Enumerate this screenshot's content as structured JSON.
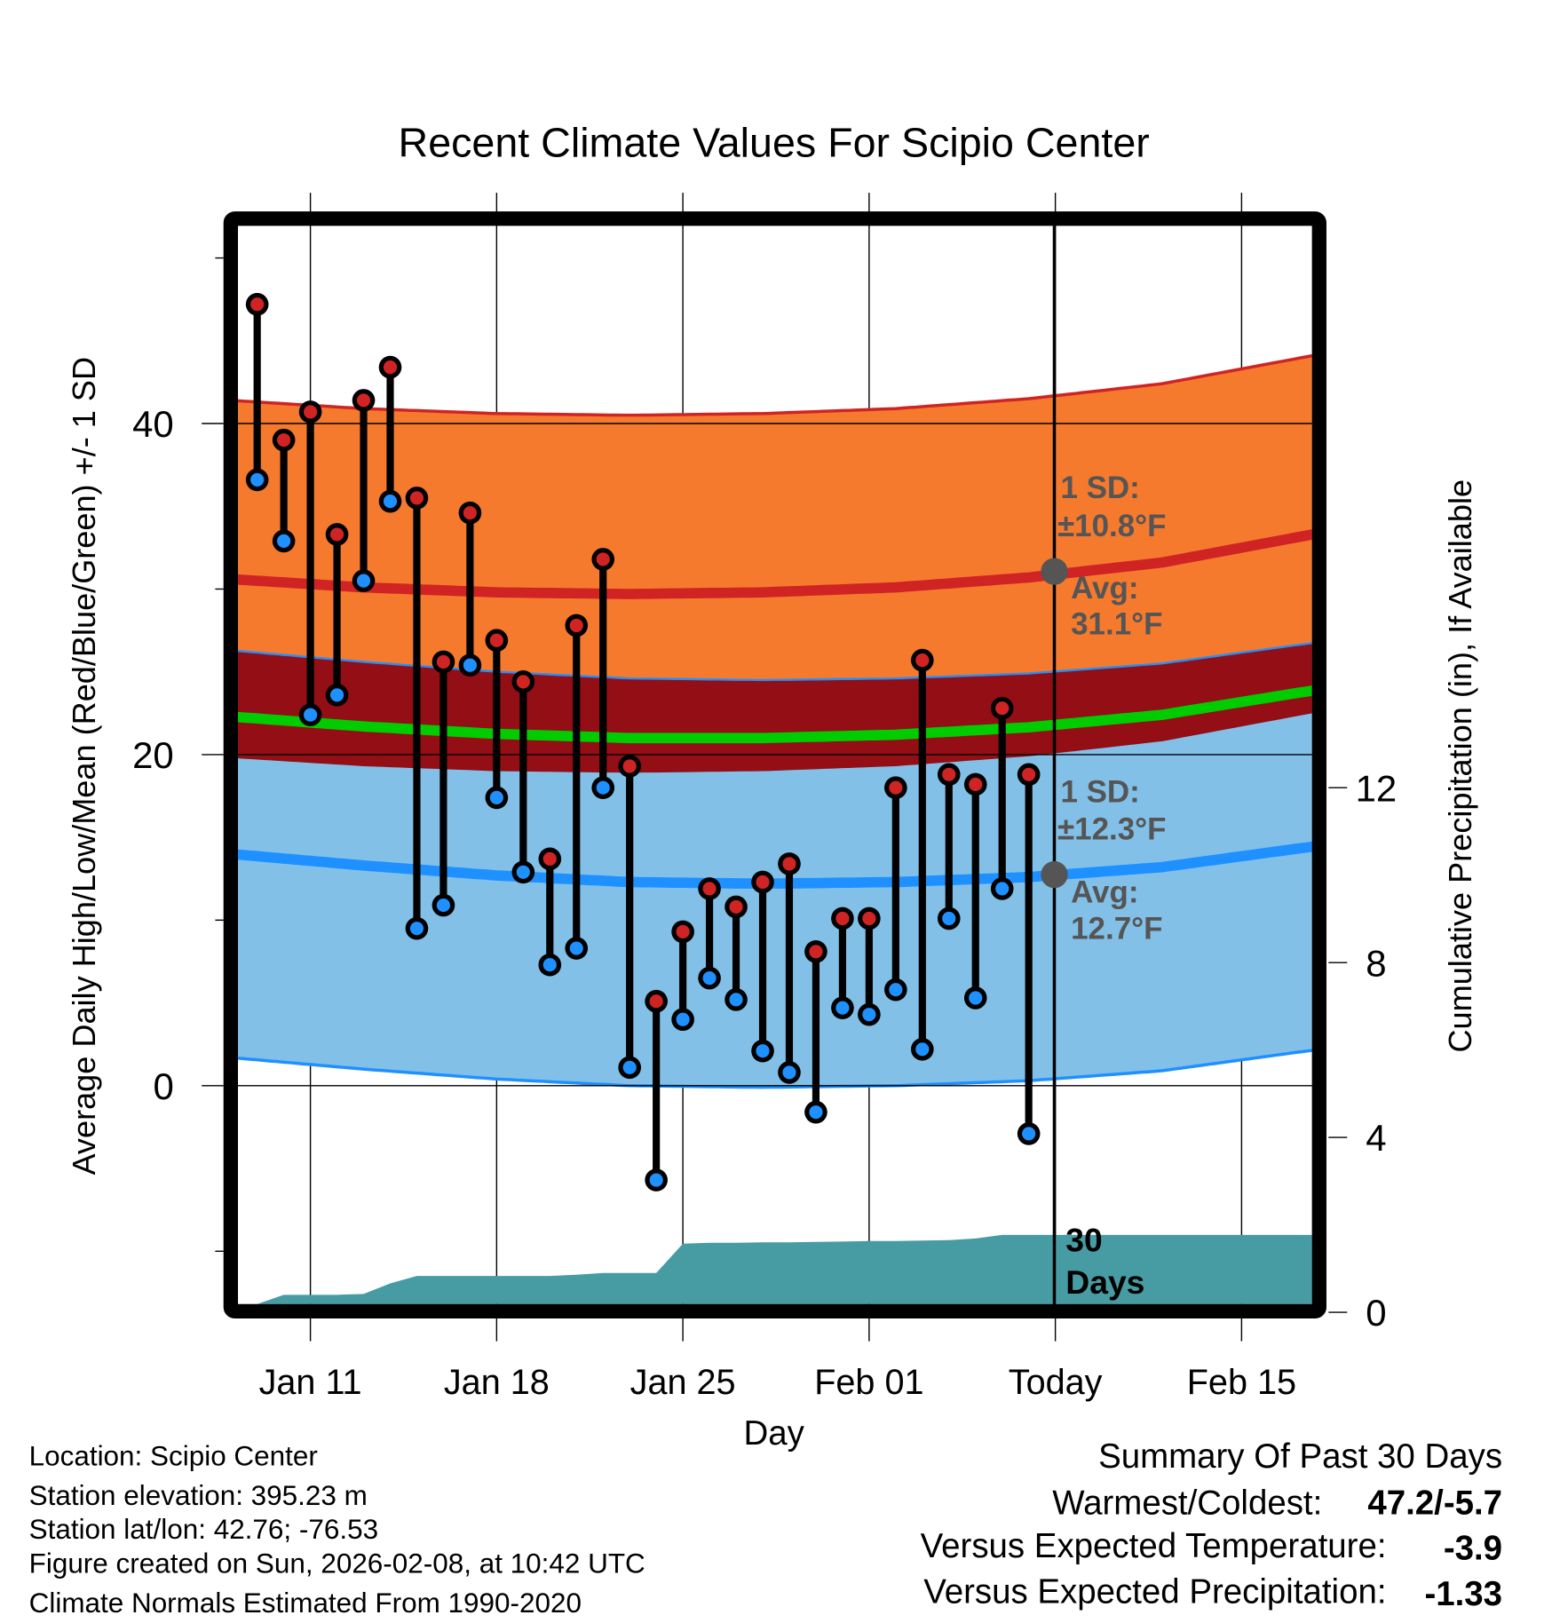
{
  "chart_data": {
    "type": "line",
    "title": "Recent Climate Values For Scipio Center",
    "xlabel": "Day",
    "ylabel": "Average Daily High/Low/Mean (Red/Blue/Green) +/- 1 SD",
    "y2label": "Cumulative Precipitation (in), If Available",
    "ylim": [
      -15,
      52
    ],
    "y2lim": [
      0,
      18
    ],
    "yticks": [
      "0",
      "20",
      "40"
    ],
    "y2ticks": [
      "0",
      "4",
      "8",
      "12"
    ],
    "xticks": [
      {
        "date": "2026-01-11",
        "label": "Jan 11"
      },
      {
        "date": "2026-01-18",
        "label": "Jan 18"
      },
      {
        "date": "2026-01-25",
        "label": "Jan 25"
      },
      {
        "date": "2026-02-01",
        "label": "Feb 01"
      },
      {
        "date": "2026-02-08",
        "label": "Today"
      },
      {
        "date": "2026-02-15",
        "label": "Feb 15"
      }
    ],
    "today": "2026-02-08",
    "grid": true,
    "series": [
      {
        "name": "Daily High",
        "color": "#d02424",
        "values": [
          47.2,
          39.0,
          40.7,
          33.3,
          41.4,
          43.4,
          35.5,
          25.6,
          34.6,
          26.9,
          24.4,
          13.7,
          27.8,
          31.8,
          19.3,
          5.1,
          9.3,
          11.9,
          10.8,
          12.3,
          13.4,
          8.1,
          10.1,
          10.1,
          18.0,
          25.7,
          18.8,
          18.2,
          22.8,
          18.8
        ]
      },
      {
        "name": "Daily Low",
        "color": "#1e90ff",
        "values": [
          36.6,
          32.9,
          22.4,
          23.6,
          30.5,
          35.3,
          9.5,
          10.9,
          25.4,
          17.4,
          12.9,
          7.3,
          8.3,
          18.0,
          1.1,
          -5.7,
          4.0,
          6.5,
          5.2,
          2.1,
          0.8,
          -1.6,
          4.7,
          4.3,
          5.8,
          2.2,
          10.1,
          5.3,
          11.9,
          -2.9
        ]
      },
      {
        "name": "Cumulative Precipitation (in)",
        "color": "#479ca4",
        "values": [
          0.19,
          0.4,
          0.4,
          0.4,
          0.42,
          0.66,
          0.83,
          0.83,
          0.83,
          0.83,
          0.83,
          0.83,
          0.86,
          0.9,
          0.9,
          0.9,
          1.57,
          1.59,
          1.59,
          1.6,
          1.6,
          1.61,
          1.62,
          1.63,
          1.63,
          1.64,
          1.65,
          1.69,
          1.77,
          1.77
        ]
      }
    ],
    "start_date": "2026-01-09",
    "normals": {
      "dates": [
        "2026-01-08",
        "2026-01-13",
        "2026-01-18",
        "2026-01-23",
        "2026-01-28",
        "2026-02-02",
        "2026-02-07",
        "2026-02-12",
        "2026-02-17",
        "2026-02-18"
      ],
      "avg_high": [
        30.6,
        30.1,
        29.8,
        29.7,
        29.8,
        30.1,
        30.7,
        31.6,
        33.1,
        33.4
      ],
      "avg_low": [
        14.0,
        13.3,
        12.7,
        12.3,
        12.2,
        12.3,
        12.6,
        13.2,
        14.3,
        14.5
      ],
      "high_sd": 10.8,
      "low_sd": 12.3
    },
    "colors": {
      "high_band": "#f57a2e",
      "low_band": "#82c0e8",
      "overlap_band": "#930e15",
      "avg_high_line": "#d02424",
      "avg_low_line": "#1e90ff",
      "mean_line": "#00cc00",
      "precip": "#479ca4"
    },
    "annotations": {
      "high_sd_label": "1 SD:",
      "high_sd_value": "±10.8°F",
      "high_avg_label": "Avg:",
      "high_avg_value": "31.1°F",
      "low_sd_label": "1 SD:",
      "low_sd_value": "±12.3°F",
      "low_avg_label": "Avg:",
      "low_avg_value": "12.7°F",
      "period_num": "30",
      "period_unit": "Days"
    }
  },
  "footer": {
    "location": "Location: Scipio Center",
    "elevation": "Station elevation: 395.23 m",
    "latlon": "Station lat/lon: 42.76; -76.53",
    "created": "Figure created on Sun, 2026-02-08, at 10:42 UTC",
    "normals": "Climate Normals Estimated From 1990-2020"
  },
  "summary": {
    "title": "Summary Of Past 30 Days",
    "warm_cold_label": "Warmest/Coldest:",
    "warm_cold_value": "47.2/-5.7",
    "temp_label": "Versus Expected Temperature:",
    "temp_value": "-3.9",
    "temp_color": "#1e90ff",
    "precip_label": "Versus Expected Precipitation:",
    "precip_value": "-1.33",
    "precip_color": "#a0522d"
  }
}
